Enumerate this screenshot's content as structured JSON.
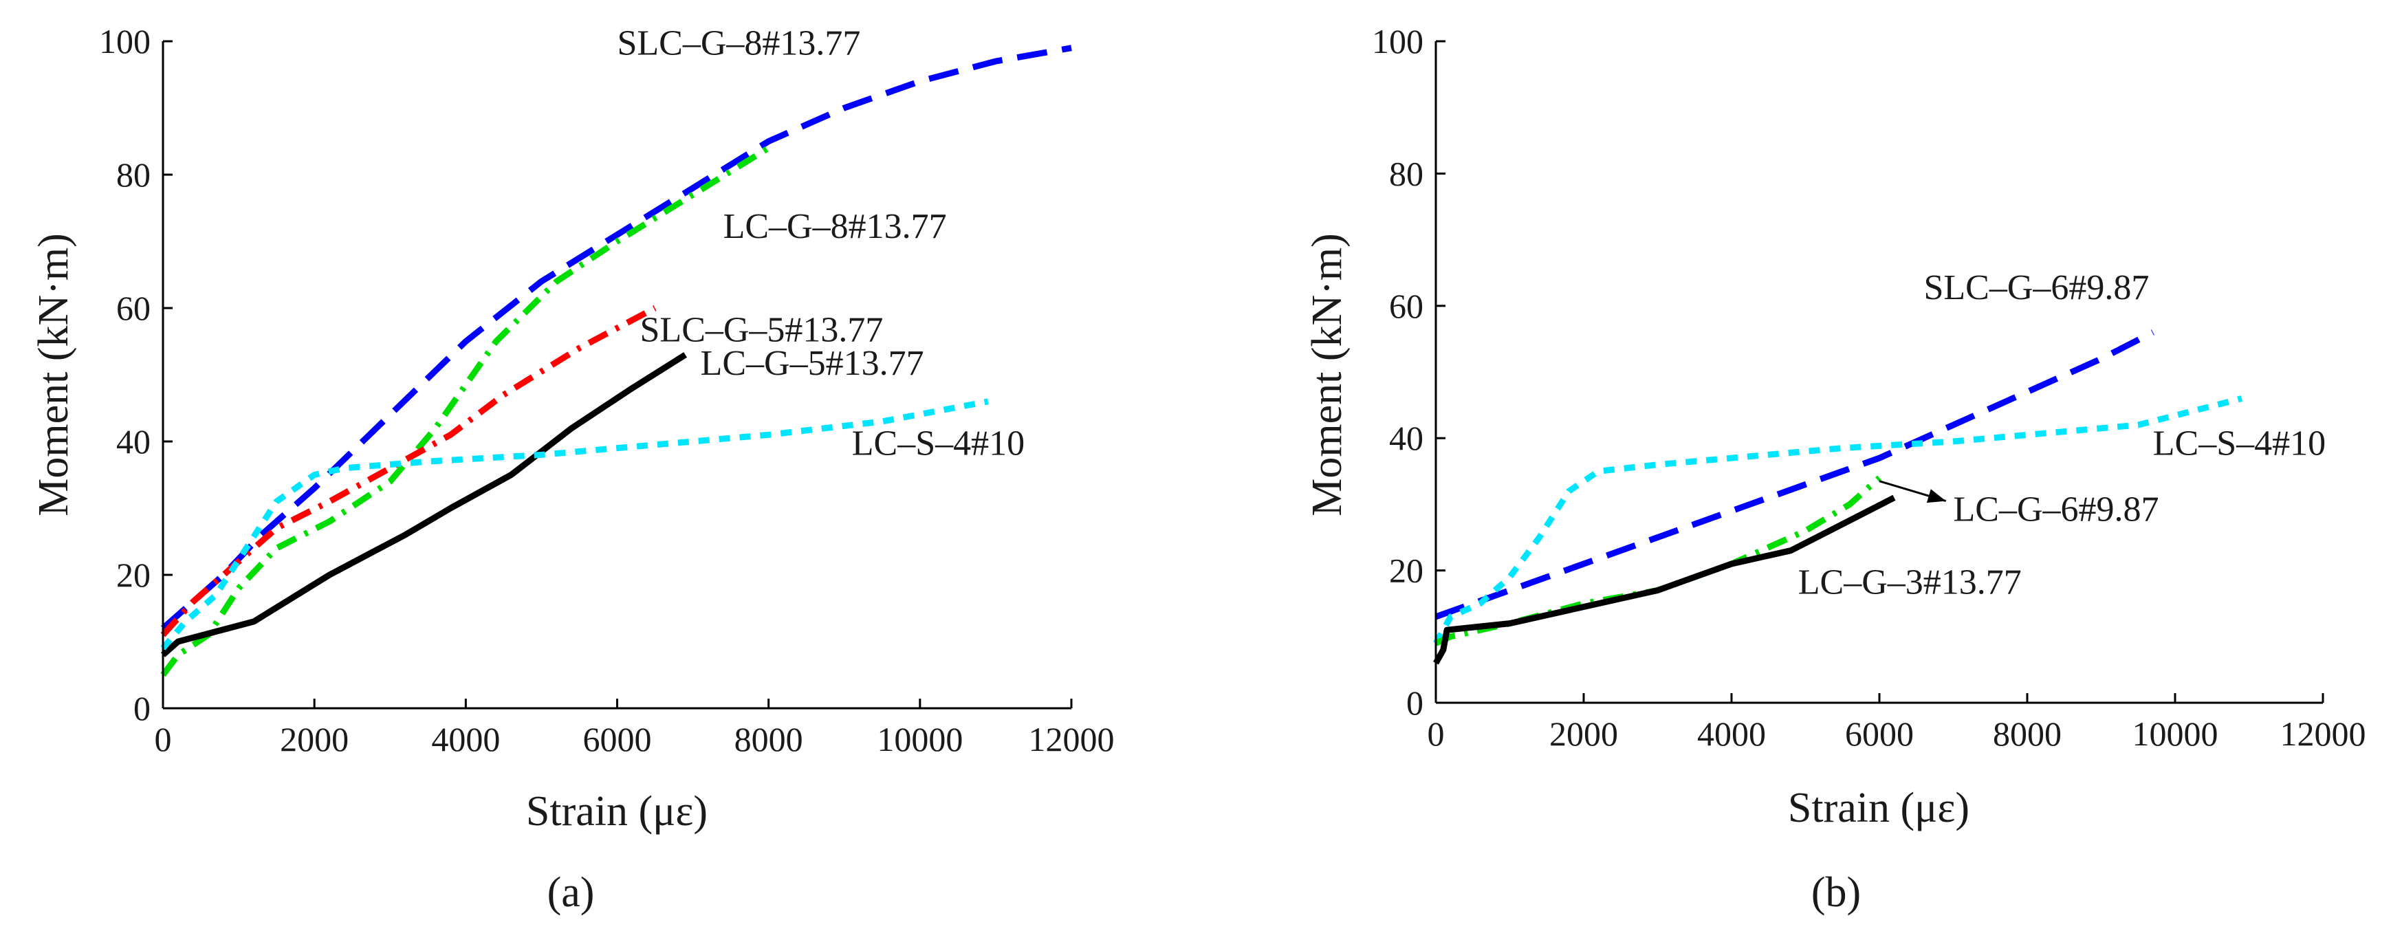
{
  "chart_data": [
    {
      "type": "line",
      "panel_label": "(a)",
      "xlabel": "Strain (με)",
      "ylabel": "Moment (kN·m)",
      "xlim": [
        0,
        12000
      ],
      "ylim": [
        0,
        100
      ],
      "xticks": [
        0,
        2000,
        4000,
        6000,
        8000,
        10000,
        12000
      ],
      "yticks": [
        0,
        20,
        40,
        60,
        80,
        100
      ],
      "grid": false,
      "series": [
        {
          "name": "SLC–G–8#13.77",
          "color": "#0000ff",
          "style": "long-dash",
          "x": [
            0,
            300,
            800,
            1300,
            2000,
            3000,
            4000,
            5000,
            6000,
            7000,
            8000,
            9000,
            10000,
            11000,
            12000
          ],
          "y": [
            12,
            15,
            20,
            26,
            33,
            44,
            55,
            64,
            71,
            78,
            85,
            90,
            94,
            97,
            99
          ]
        },
        {
          "name": "LC–G–8#13.77",
          "color": "#00dd00",
          "style": "dash-dot",
          "x": [
            0,
            200,
            600,
            1000,
            1500,
            2200,
            3000,
            3600,
            4400,
            5200,
            6000,
            7000,
            8000
          ],
          "y": [
            5,
            8,
            11,
            18,
            24,
            28,
            34,
            42,
            55,
            64,
            70,
            77,
            84
          ]
        },
        {
          "name": "SLC–G–5#13.77",
          "color": "#ff0000",
          "style": "dash-dot",
          "x": [
            0,
            400,
            900,
            1500,
            2200,
            3000,
            3800,
            4500,
            5500,
            6500
          ],
          "y": [
            11,
            16,
            21,
            27,
            31,
            36,
            41,
            47,
            54,
            60
          ]
        },
        {
          "name": "LC–G–5#13.77",
          "color": "#000000",
          "style": "solid",
          "x": [
            0,
            200,
            1200,
            2200,
            2700,
            3200,
            3800,
            4600,
            5400,
            6200,
            6900
          ],
          "y": [
            8,
            10,
            13,
            20,
            23,
            26,
            30,
            35,
            42,
            48,
            53
          ]
        },
        {
          "name": "LC–S–4#10",
          "color": "#00e5ff",
          "style": "short-dash",
          "x": [
            0,
            300,
            700,
            1100,
            1500,
            2000,
            2400,
            3500,
            5000,
            6500,
            8000,
            9500,
            10900
          ],
          "y": [
            9,
            13,
            17,
            24,
            31,
            35,
            36,
            37,
            38,
            39.5,
            41,
            43,
            46
          ]
        }
      ],
      "annotations": [
        {
          "text": "SLC–G–8#13.77",
          "x": 6000,
          "y": 98
        },
        {
          "text": "LC–G–8#13.77",
          "x": 7400,
          "y": 70.5
        },
        {
          "text": "SLC–G–5#13.77",
          "x": 6300,
          "y": 55
        },
        {
          "text": "LC–G–5#13.77",
          "x": 7100,
          "y": 50
        },
        {
          "text": "LC–S–4#10",
          "x": 9100,
          "y": 38
        }
      ]
    },
    {
      "type": "line",
      "panel_label": "(b)",
      "xlabel": "Strain (με)",
      "ylabel": "Moment (kN·m)",
      "xlim": [
        0,
        12000
      ],
      "ylim": [
        0,
        100
      ],
      "xticks": [
        0,
        2000,
        4000,
        6000,
        8000,
        10000,
        12000
      ],
      "yticks": [
        0,
        20,
        40,
        60,
        80,
        100
      ],
      "grid": false,
      "series": [
        {
          "name": "SLC–G–6#9.87",
          "color": "#0000ff",
          "style": "long-dash",
          "x": [
            0,
            500,
            1000,
            2000,
            3000,
            4000,
            5000,
            6000,
            7000,
            8000,
            9000,
            9700
          ],
          "y": [
            13,
            15,
            17,
            21,
            25,
            29,
            33,
            37,
            42,
            47,
            52,
            56
          ]
        },
        {
          "name": "LC–S–4#10",
          "color": "#00e5ff",
          "style": "short-dash",
          "x": [
            0,
            200,
            600,
            1000,
            1400,
            1800,
            2200,
            3000,
            4000,
            5500,
            7000,
            8500,
            9500,
            10900
          ],
          "y": [
            9,
            13,
            15,
            19,
            25,
            32,
            35,
            36,
            37,
            38.5,
            39.5,
            41,
            42,
            46
          ]
        },
        {
          "name": "LC–G–6#9.87",
          "color": "#00dd00",
          "style": "dash-dot",
          "x": [
            0,
            200,
            1000,
            2000,
            3000,
            4000,
            5000,
            5600,
            6000
          ],
          "y": [
            9,
            10,
            12,
            15,
            17,
            21,
            26,
            30,
            34
          ]
        },
        {
          "name": "LC–G–3#13.77",
          "color": "#000000",
          "style": "solid",
          "x": [
            0,
            100,
            150,
            1000,
            2000,
            3000,
            3500,
            4000,
            4800,
            5500,
            6200
          ],
          "y": [
            6,
            8,
            11,
            12,
            14.5,
            17,
            19,
            21,
            23,
            27,
            31
          ]
        }
      ],
      "annotations": [
        {
          "text": "SLC–G–6#9.87",
          "x": 6600,
          "y": 61
        },
        {
          "text": "LC–S–4#10",
          "x": 9700,
          "y": 37.5
        },
        {
          "text": "LC–G–6#9.87",
          "x": 7000,
          "y": 27.5
        },
        {
          "text": "LC–G–3#13.77",
          "x": 4900,
          "y": 16.5
        }
      ],
      "arrow": {
        "from": [
          6900,
          30.5
        ],
        "to": [
          6000,
          33.5
        ]
      }
    }
  ]
}
